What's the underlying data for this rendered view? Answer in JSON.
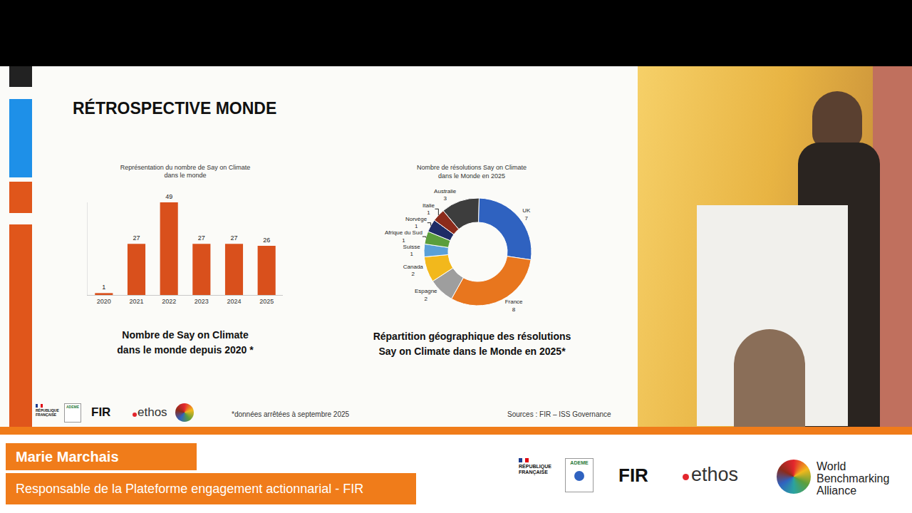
{
  "slide": {
    "title": "RÉTROSPECTIVE MONDE",
    "footnote": "*données arrêtées à septembre 2025",
    "sources": "Sources : FIR – ISS Governance"
  },
  "chart_data": [
    {
      "type": "bar",
      "title": [
        "Représentation du nombre de Say on Climate",
        "dans le monde"
      ],
      "caption": [
        "Nombre de Say on Climate",
        "dans le monde depuis 2020 *"
      ],
      "categories": [
        "2020",
        "2021",
        "2022",
        "2023",
        "2024",
        "2025"
      ],
      "values": [
        1,
        27,
        49,
        27,
        27,
        26
      ],
      "color": "#d9501c",
      "ylim": [
        0,
        49
      ],
      "yticks": [],
      "data_labels": true,
      "tick_labels": "x",
      "grid": false
    },
    {
      "type": "pie",
      "title": [
        "Nombre de résolutions Say on Climate",
        "dans le Monde en 2025"
      ],
      "caption": [
        "Répartition géographique des résolutions",
        "Say on Climate dans le Monde en 2025*"
      ],
      "categories": [
        "Australie",
        "UK",
        "France",
        "Espagne",
        "Canada",
        "Suisse",
        "Afrique du Sud",
        "Norvège",
        "Italie"
      ],
      "values": [
        3,
        7,
        8,
        2,
        2,
        1,
        1,
        1,
        1
      ],
      "colors": [
        "#3d3d3d",
        "#2f62c0",
        "#e8761e",
        "#9e9e9e",
        "#f2b81c",
        "#5aa0d8",
        "#5b9e3c",
        "#1e2c66",
        "#8c2b1b"
      ],
      "data_labels": true
    }
  ],
  "logos": {
    "republique": [
      "RÉPUBLIQUE",
      "FRANÇAISE"
    ],
    "ademe": "ADEME",
    "fir": "FIR",
    "ethos": "ethos",
    "wba": [
      "World",
      "Benchmarking",
      "Alliance"
    ]
  },
  "speaker": {
    "name": "Marie Marchais",
    "role": "Responsable de la Plateforme engagement actionnarial - FIR"
  }
}
